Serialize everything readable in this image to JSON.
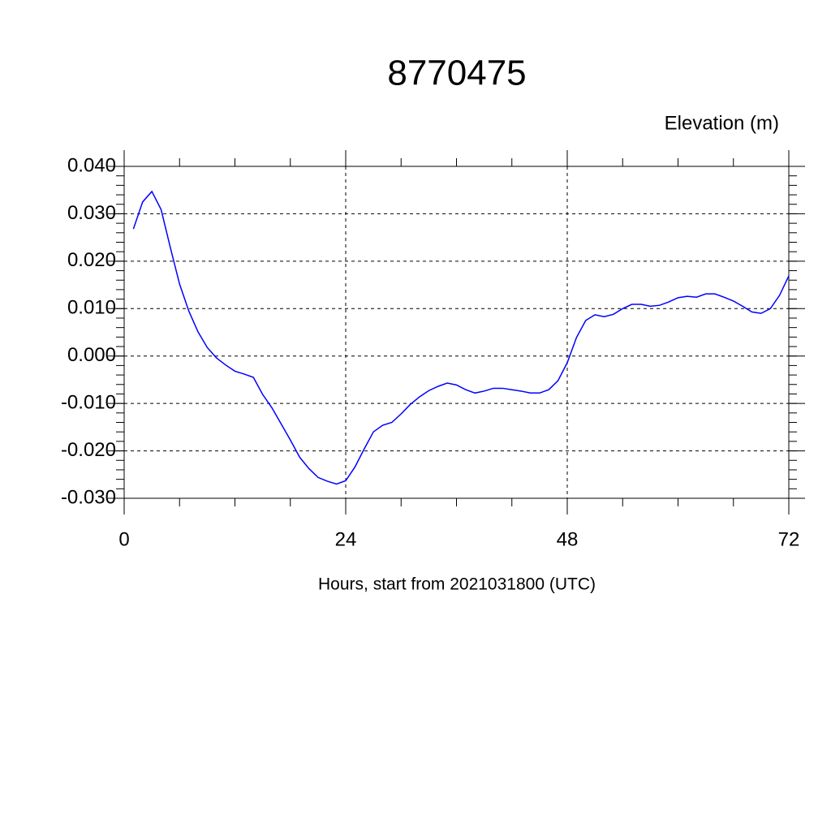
{
  "chart_data": {
    "type": "line",
    "title": "8770475",
    "subtitle": "Elevation (m)",
    "x_label": "Hours, start from 2021031800 (UTC)",
    "x": [
      1,
      2,
      3,
      4,
      5,
      6,
      7,
      8,
      9,
      10,
      11,
      12,
      13,
      14,
      15,
      16,
      17,
      18,
      19,
      20,
      21,
      22,
      23,
      24,
      25,
      26,
      27,
      28,
      29,
      30,
      31,
      32,
      33,
      34,
      35,
      36,
      37,
      38,
      39,
      40,
      41,
      42,
      43,
      44,
      45,
      46,
      47,
      48,
      49,
      50,
      51,
      52,
      53,
      54,
      55,
      56,
      57,
      58,
      59,
      60,
      61,
      62,
      63,
      64,
      65,
      66,
      67,
      68,
      69,
      70,
      71,
      72
    ],
    "series": [
      {
        "color": "#0000ff",
        "values": [
          0.0268,
          0.0325,
          0.0347,
          0.0309,
          0.0229,
          0.0152,
          0.0095,
          0.0051,
          0.0018,
          -0.0004,
          -0.0019,
          -0.0032,
          -0.0038,
          -0.0045,
          -0.0081,
          -0.0109,
          -0.0143,
          -0.0177,
          -0.0213,
          -0.0237,
          -0.0256,
          -0.0264,
          -0.027,
          -0.0263,
          -0.0234,
          -0.0196,
          -0.016,
          -0.0146,
          -0.014,
          -0.0122,
          -0.0102,
          -0.0086,
          -0.0073,
          -0.0064,
          -0.0057,
          -0.0061,
          -0.0071,
          -0.0078,
          -0.0074,
          -0.0068,
          -0.0068,
          -0.0071,
          -0.0074,
          -0.0078,
          -0.0078,
          -0.0071,
          -0.0052,
          -0.0014,
          0.0039,
          0.0075,
          0.0087,
          0.0083,
          0.0088,
          0.01,
          0.0109,
          0.0109,
          0.0105,
          0.0107,
          0.0114,
          0.0123,
          0.0126,
          0.0124,
          0.0131,
          0.0131,
          0.0124,
          0.0116,
          0.0105,
          0.0093,
          0.009,
          0.01,
          0.0128,
          0.0169
        ]
      }
    ],
    "xlim": [
      0,
      72
    ],
    "xticks": [
      0,
      24,
      48,
      72
    ],
    "ylim": [
      -0.03,
      0.04
    ],
    "yticks": [
      {
        "value": -0.03,
        "label": "-0.030"
      },
      {
        "value": -0.02,
        "label": "-0.020"
      },
      {
        "value": -0.01,
        "label": "-0.010"
      },
      {
        "value": 0,
        "label": "0.000"
      },
      {
        "value": 0.01,
        "label": "0.010"
      },
      {
        "value": 0.02,
        "label": "0.020"
      },
      {
        "value": 0.03,
        "label": "0.030"
      },
      {
        "value": 0.04,
        "label": "0.040"
      }
    ],
    "grid": true
  }
}
